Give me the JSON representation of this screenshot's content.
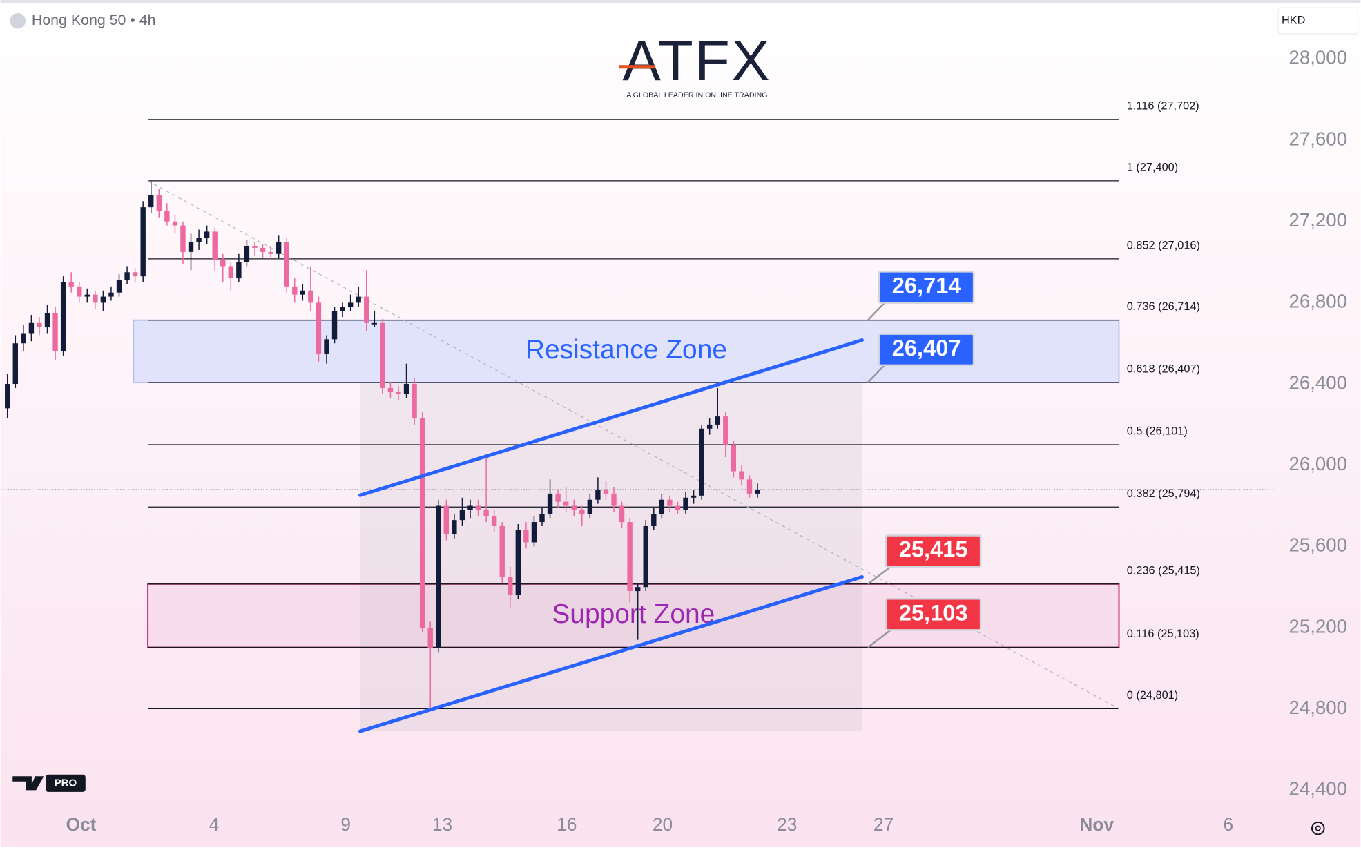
{
  "header": {
    "symbol": "Hong Kong 50 • 4h",
    "currency": "HKD"
  },
  "logo": {
    "brand": "ATFX",
    "tagline": "A GLOBAL LEADER IN ONLINE TRADING"
  },
  "badge": "PRO",
  "chart_data": {
    "type": "candlestick",
    "up_color": "#131b3a",
    "down_color": "#ec6aa0",
    "candles": [
      [
        26280,
        26450,
        26230,
        26400
      ],
      [
        26400,
        26640,
        26380,
        26600
      ],
      [
        26600,
        26690,
        26560,
        26650
      ],
      [
        26650,
        26740,
        26610,
        26700
      ],
      [
        26700,
        26730,
        26640,
        26680
      ],
      [
        26680,
        26790,
        26650,
        26750
      ],
      [
        26750,
        26780,
        26520,
        26560
      ],
      [
        26560,
        26930,
        26540,
        26900
      ],
      [
        26900,
        26950,
        26850,
        26880
      ],
      [
        26880,
        26900,
        26800,
        26830
      ],
      [
        26830,
        26870,
        26800,
        26840
      ],
      [
        26840,
        26860,
        26770,
        26800
      ],
      [
        26800,
        26860,
        26760,
        26830
      ],
      [
        26830,
        26880,
        26810,
        26850
      ],
      [
        26850,
        26940,
        26830,
        26910
      ],
      [
        26910,
        26980,
        26890,
        26950
      ],
      [
        26950,
        26970,
        26900,
        26930
      ],
      [
        26930,
        27300,
        26900,
        27270
      ],
      [
        27270,
        27400,
        27240,
        27330
      ],
      [
        27330,
        27360,
        27220,
        27250
      ],
      [
        27250,
        27290,
        27180,
        27200
      ],
      [
        27200,
        27230,
        27140,
        27180
      ],
      [
        27180,
        27200,
        26990,
        27050
      ],
      [
        27050,
        27140,
        26960,
        27100
      ],
      [
        27100,
        27160,
        27060,
        27120
      ],
      [
        27120,
        27180,
        27090,
        27150
      ],
      [
        27150,
        27170,
        26960,
        27010
      ],
      [
        27010,
        27040,
        26900,
        26980
      ],
      [
        26980,
        27000,
        26860,
        26920
      ],
      [
        26920,
        27040,
        26900,
        27000
      ],
      [
        27000,
        27110,
        26980,
        27080
      ],
      [
        27080,
        27100,
        27030,
        27070
      ],
      [
        27070,
        27090,
        27020,
        27050
      ],
      [
        27050,
        27080,
        27010,
        27040
      ],
      [
        27040,
        27130,
        27020,
        27100
      ],
      [
        27100,
        27120,
        26850,
        26880
      ],
      [
        26880,
        26920,
        26800,
        26840
      ],
      [
        26840,
        26890,
        26810,
        26860
      ],
      [
        26860,
        26980,
        26760,
        26800
      ],
      [
        26800,
        26830,
        26510,
        26550
      ],
      [
        26550,
        26640,
        26500,
        26620
      ],
      [
        26620,
        26780,
        26600,
        26760
      ],
      [
        26760,
        26800,
        26730,
        26780
      ],
      [
        26780,
        26840,
        26760,
        26800
      ],
      [
        26800,
        26880,
        26780,
        26830
      ],
      [
        26830,
        26960,
        26660,
        26700
      ],
      [
        26700,
        26760,
        26680,
        26700
      ],
      [
        26700,
        26720,
        26350,
        26380
      ],
      [
        26380,
        26410,
        26330,
        26360
      ],
      [
        26360,
        26390,
        26320,
        26350
      ],
      [
        26350,
        26500,
        26330,
        26400
      ],
      [
        26400,
        26430,
        26200,
        26230
      ],
      [
        26230,
        26260,
        25180,
        25200
      ],
      [
        25200,
        25230,
        24800,
        25100
      ],
      [
        25100,
        25830,
        25080,
        25800
      ],
      [
        25800,
        25830,
        25630,
        25660
      ],
      [
        25660,
        25760,
        25640,
        25730
      ],
      [
        25730,
        25840,
        25700,
        25780
      ],
      [
        25780,
        25830,
        25740,
        25800
      ],
      [
        25800,
        25830,
        25750,
        25780
      ],
      [
        25780,
        26050,
        25720,
        25750
      ],
      [
        25750,
        25780,
        25670,
        25700
      ],
      [
        25700,
        25720,
        25420,
        25450
      ],
      [
        25450,
        25500,
        25300,
        25360
      ],
      [
        25360,
        25710,
        25340,
        25680
      ],
      [
        25680,
        25720,
        25590,
        25620
      ],
      [
        25620,
        25750,
        25600,
        25720
      ],
      [
        25720,
        25790,
        25700,
        25760
      ],
      [
        25760,
        25930,
        25740,
        25860
      ],
      [
        25860,
        25880,
        25790,
        25820
      ],
      [
        25820,
        25890,
        25770,
        25800
      ],
      [
        25800,
        25830,
        25750,
        25780
      ],
      [
        25780,
        25800,
        25700,
        25760
      ],
      [
        25760,
        25860,
        25740,
        25830
      ],
      [
        25830,
        25940,
        25810,
        25880
      ],
      [
        25880,
        25920,
        25830,
        25860
      ],
      [
        25860,
        25890,
        25770,
        25800
      ],
      [
        25800,
        25820,
        25690,
        25720
      ],
      [
        25720,
        25740,
        25320,
        25380
      ],
      [
        25380,
        25420,
        25140,
        25400
      ],
      [
        25400,
        25730,
        25380,
        25700
      ],
      [
        25700,
        25790,
        25680,
        25760
      ],
      [
        25760,
        25860,
        25740,
        25830
      ],
      [
        25830,
        25850,
        25770,
        25800
      ],
      [
        25800,
        25820,
        25760,
        25780
      ],
      [
        25780,
        25870,
        25760,
        25840
      ],
      [
        25840,
        25880,
        25810,
        25850
      ],
      [
        25850,
        26200,
        25830,
        26180
      ],
      [
        26180,
        26230,
        26150,
        26200
      ],
      [
        26200,
        26380,
        26180,
        26240
      ],
      [
        26240,
        26260,
        26040,
        26100
      ],
      [
        26100,
        26120,
        25940,
        25970
      ],
      [
        25970,
        26000,
        25900,
        25930
      ],
      [
        25930,
        25950,
        25840,
        25860
      ],
      [
        25860,
        25910,
        25840,
        25880
      ]
    ],
    "xlim": [
      -0.87,
      158.7
    ],
    "xticks": [
      {
        "value": 9.24,
        "label": "Oct"
      },
      {
        "value": 25.9,
        "label": "4"
      },
      {
        "value": 42.4,
        "label": "9"
      },
      {
        "value": 54.5,
        "label": "13"
      },
      {
        "value": 70.1,
        "label": "16"
      },
      {
        "value": 82.1,
        "label": "20"
      },
      {
        "value": 97.7,
        "label": "23"
      },
      {
        "value": 109.8,
        "label": "27"
      },
      {
        "value": 136.5,
        "label": "Nov"
      },
      {
        "value": 153,
        "label": "6"
      }
    ],
    "ylim": [
      24400,
      28000
    ],
    "yticks": [
      {
        "value": 24400,
        "label": "24,400"
      },
      {
        "value": 24800,
        "label": "24,800"
      },
      {
        "value": 25200,
        "label": "25,200"
      },
      {
        "value": 25600,
        "label": "25,600"
      },
      {
        "value": 26000,
        "label": "26,000"
      },
      {
        "value": 26400,
        "label": "26,400"
      },
      {
        "value": 26800,
        "label": "26,800"
      },
      {
        "value": 27200,
        "label": "27,200"
      },
      {
        "value": 27600,
        "label": "27,600"
      },
      {
        "value": 28000,
        "label": "28,000"
      }
    ],
    "fib_x": [
      17.6,
      139.3
    ],
    "fib_levels": [
      {
        "value": 27702,
        "label": "1.116 (27,702)"
      },
      {
        "value": 27400,
        "label": "1 (27,400)"
      },
      {
        "value": 27016,
        "label": "0.852 (27,016)"
      },
      {
        "value": 26714,
        "label": "0.736 (26,714)"
      },
      {
        "value": 26407,
        "label": "0.618 (26,407)"
      },
      {
        "value": 26101,
        "label": "0.5 (26,101)"
      },
      {
        "value": 25794,
        "label": "0.382 (25,794)"
      },
      {
        "value": 25415,
        "label": "0.236 (25,415)"
      },
      {
        "value": 25103,
        "label": "0.116 (25,103)"
      },
      {
        "value": 24801,
        "label": "0 (24,801)"
      }
    ],
    "zones": [
      {
        "name": "Resistance Zone",
        "low": 26407,
        "high": 26714,
        "x": [
          15.8,
          139.3
        ],
        "fill": "#dcdffb",
        "border": "#b7bdf2",
        "text_color": "#2962ff"
      },
      {
        "name": "Support Zone",
        "low": 25103,
        "high": 25415,
        "x": [
          17.6,
          139.3
        ],
        "fill": "#f7dcea",
        "border": "#c2185b",
        "text_color": "#9c27b0"
      }
    ],
    "channel": {
      "x": [
        44.2,
        107.1
      ],
      "upper": [
        25852,
        26616
      ],
      "lower": [
        24690,
        25450
      ],
      "color": "#2962ff"
    },
    "callouts": [
      {
        "value": 26714,
        "label": "26,714",
        "color": "#2962ff"
      },
      {
        "value": 26407,
        "label": "26,407",
        "color": "#2962ff"
      },
      {
        "value": 25415,
        "label": "25,415",
        "color": "#f23645"
      },
      {
        "value": 25103,
        "label": "25,103",
        "color": "#f23645"
      }
    ]
  }
}
